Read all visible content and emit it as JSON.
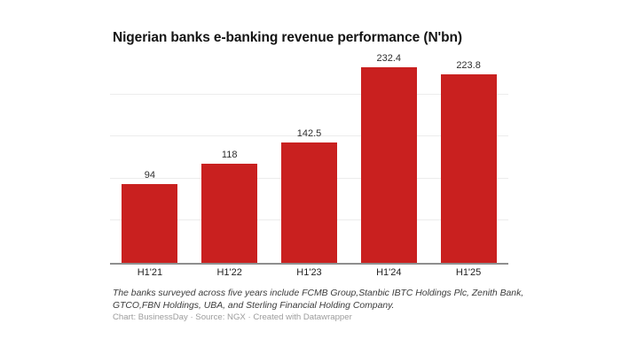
{
  "title": "Nigerian banks e-banking revenue performance (N'bn)",
  "chart_data": {
    "type": "bar",
    "title": "Nigerian banks e-banking revenue performance (N'bn)",
    "categories": [
      "H1'21",
      "H1'22",
      "H1'23",
      "H1'24",
      "H1'25"
    ],
    "values": [
      94,
      118,
      142.5,
      232.4,
      223.8
    ],
    "value_labels": [
      "94",
      "118",
      "142.5",
      "232.4",
      "223.8"
    ],
    "xlabel": "",
    "ylabel": "",
    "ylim": [
      0,
      250
    ],
    "gridline_values": [
      50,
      100,
      150,
      200
    ],
    "grid": true,
    "legend": "none",
    "bar_color": "#c9201f"
  },
  "footer": {
    "notes": "The banks surveyed across five years include FCMB Group,Stanbic IBTC Holdings Plc, Zenith Bank, GTCO,FBN Holdings, UBA, and Sterling Financial Holding Company.",
    "credit": "Chart: BusinessDay · Source: NGX · Created with Datawrapper"
  },
  "colors": {
    "bar": "#c9201f",
    "gridline": "#ececec",
    "baseline": "#8f8f8f",
    "title_text": "#141414",
    "value_label": "#2e2e2e",
    "axis_label": "#1f1f1f",
    "notes_text": "#3c3c3c",
    "credit_text": "#9c9c9c",
    "background": "#ffffff"
  }
}
